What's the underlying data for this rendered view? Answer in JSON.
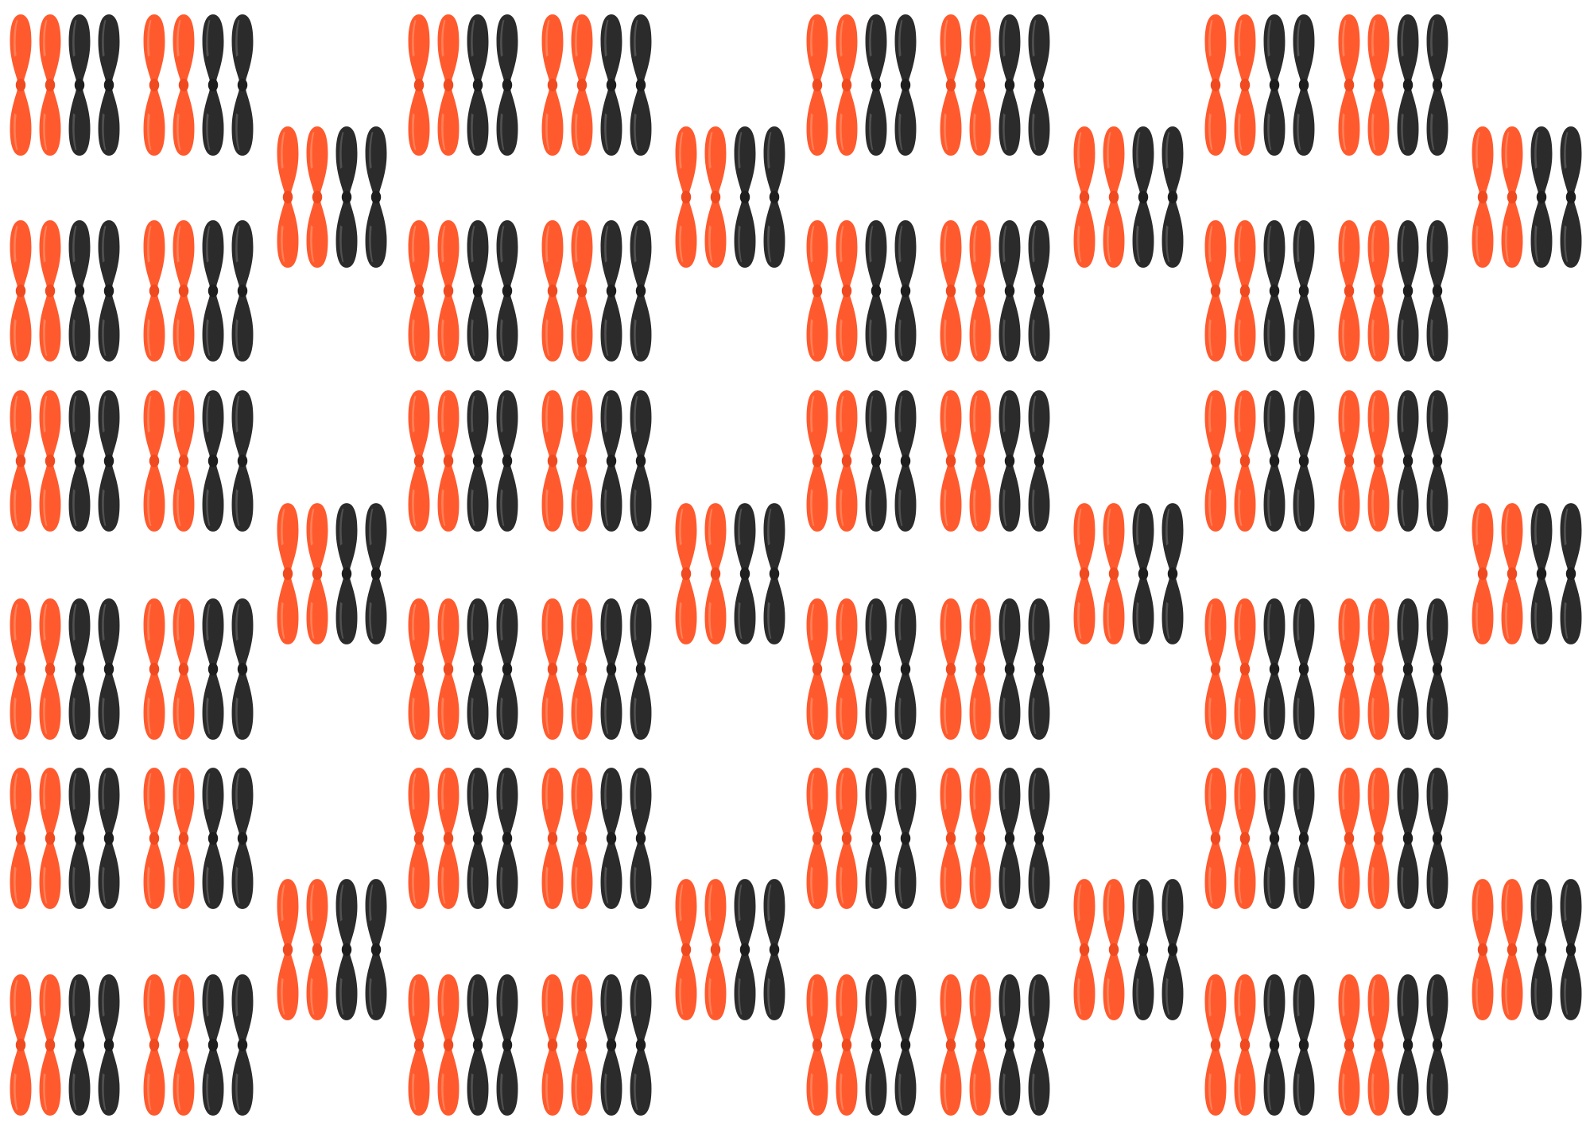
{
  "image": {
    "background_color": "#ffffff",
    "subject": "propeller-set",
    "colors": {
      "orange": "#ff5a2e",
      "orange_highlight": "#ff8a62",
      "black": "#2b2b2b",
      "black_highlight": "#5a5a5a"
    },
    "set_composition": [
      "orange",
      "orange",
      "black",
      "black"
    ],
    "column_groups": 4,
    "sets_per_group": {
      "left_column": 6,
      "middle_column": 6,
      "offset_column": 3
    },
    "total_sets": 60,
    "total_propellers": 240
  }
}
